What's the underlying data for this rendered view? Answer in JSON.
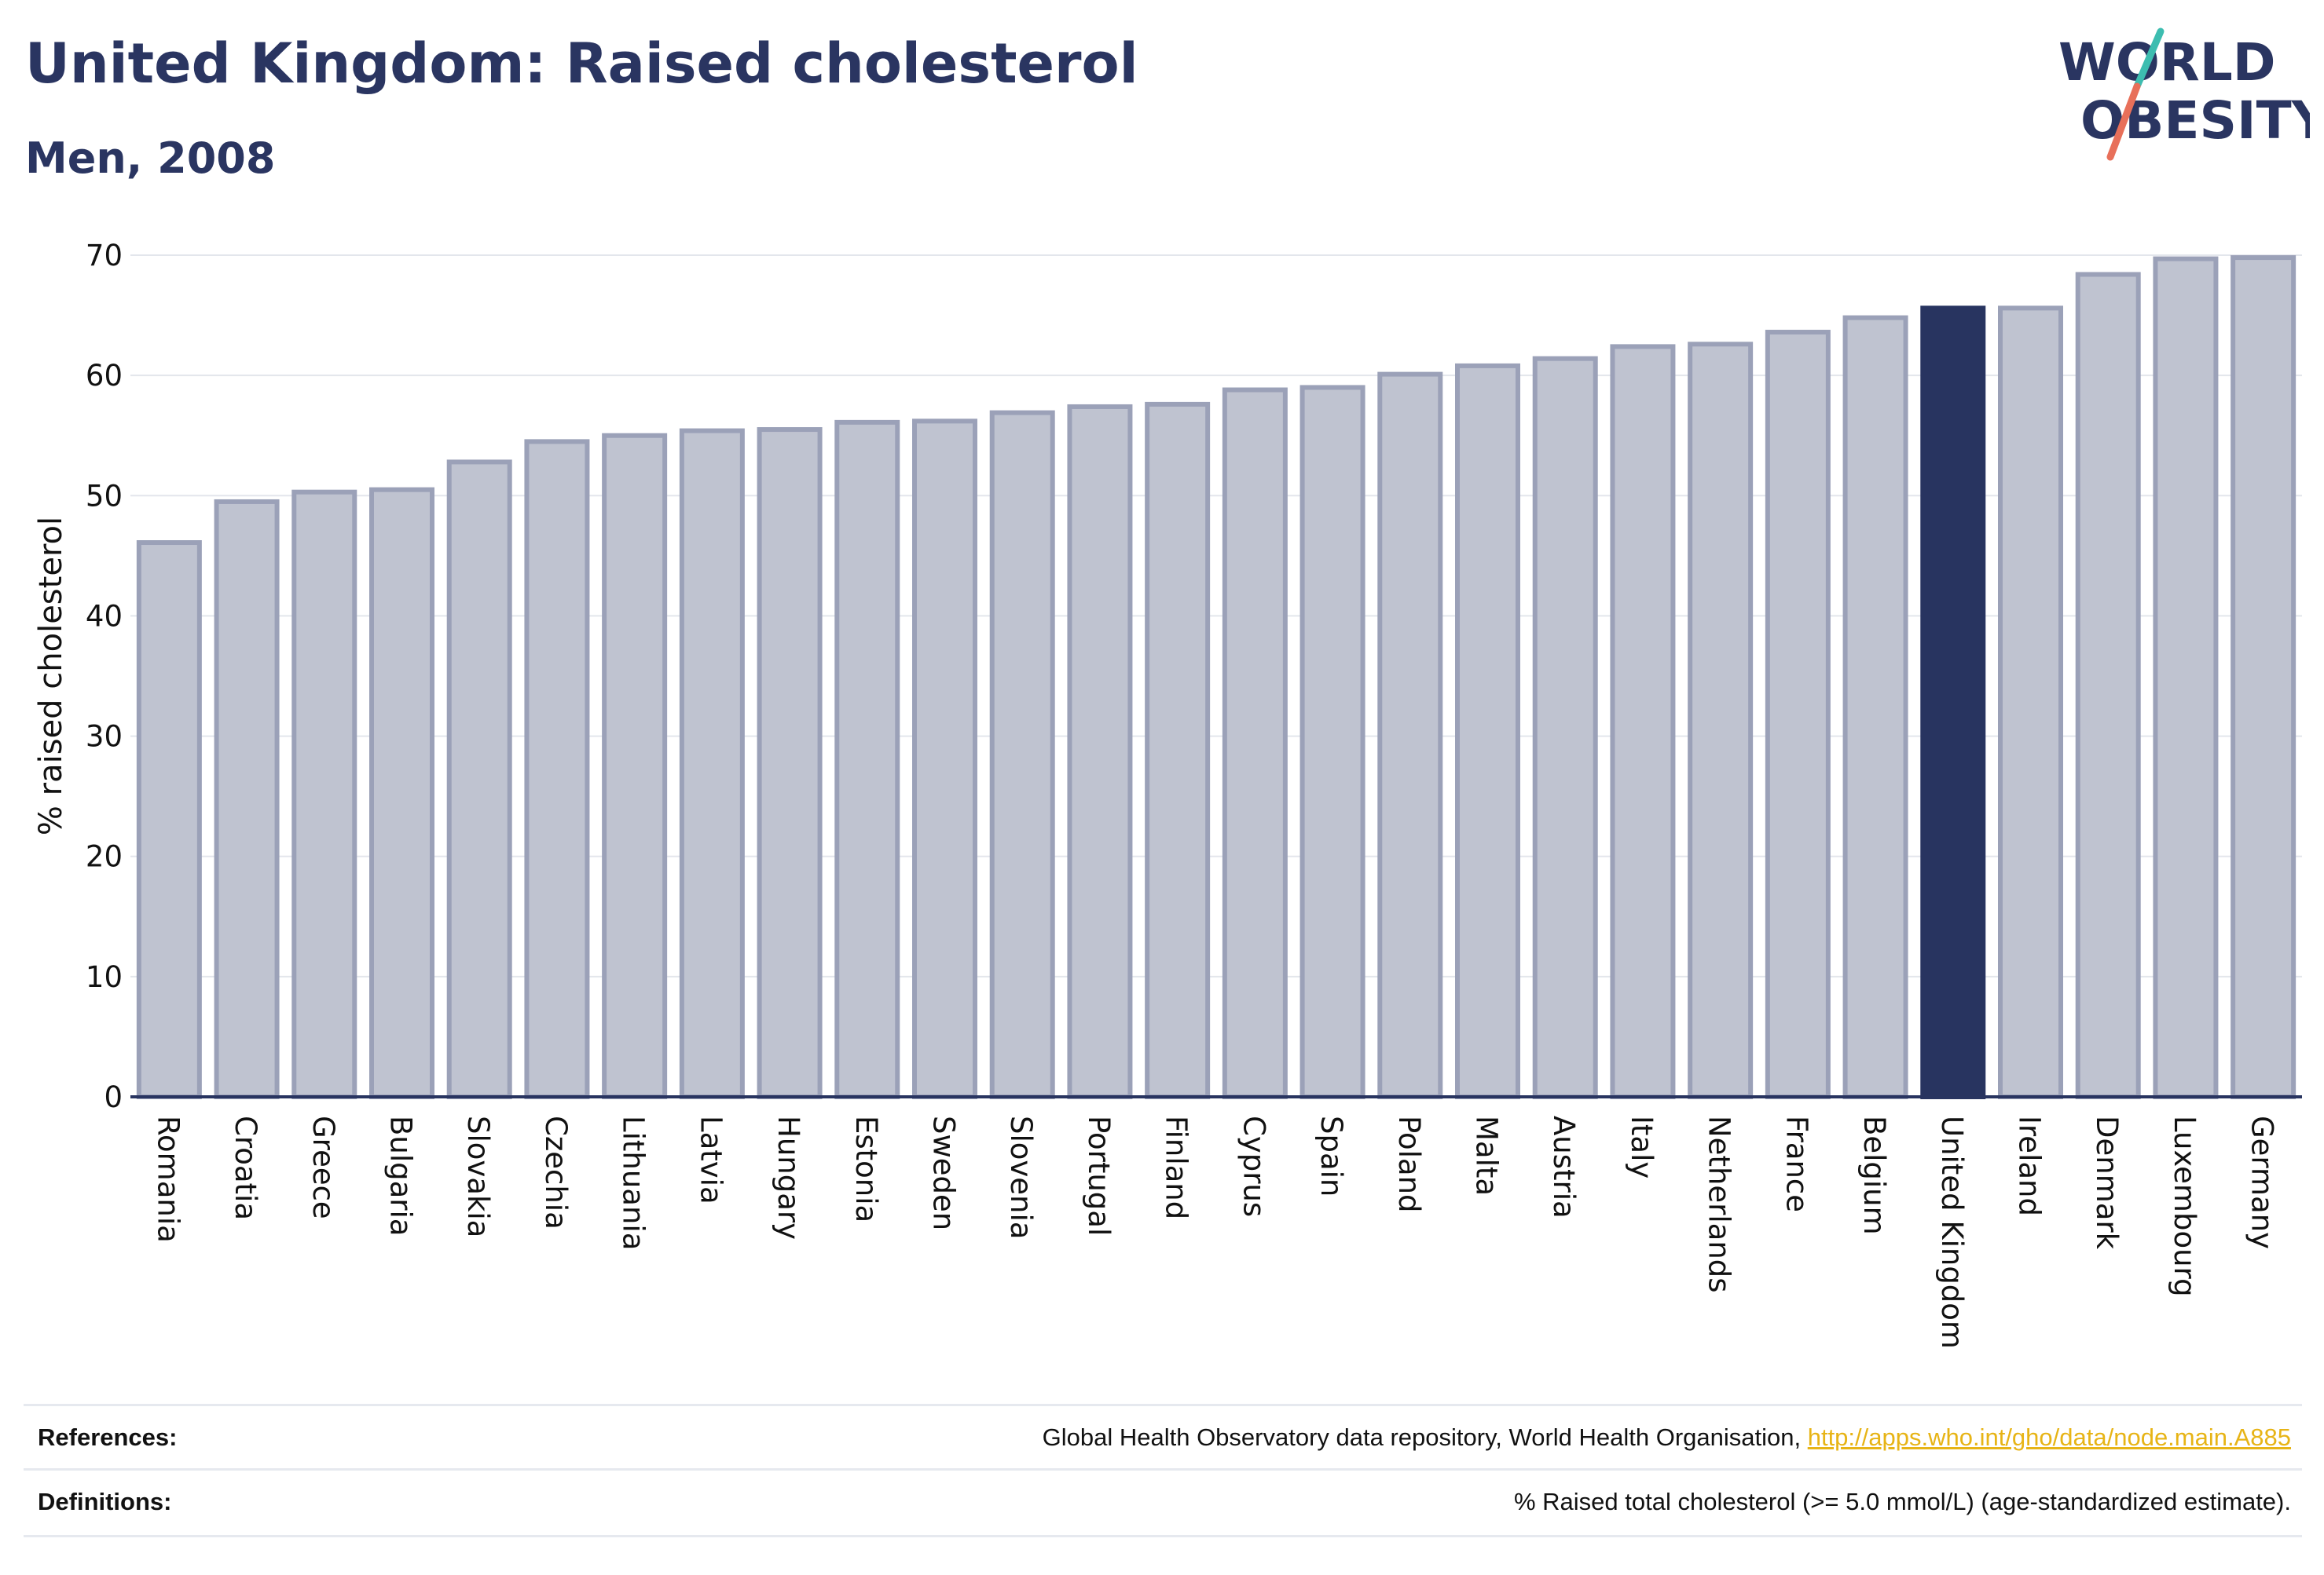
{
  "header": {
    "title": "United Kingdom: Raised cholesterol",
    "subtitle": "Men, 2008"
  },
  "logo": {
    "line1": "WORLD",
    "line2": "OBESITY",
    "colors": {
      "text": "#2a3561",
      "slash_top": "#3dbdb0",
      "slash_bottom": "#e8705a"
    }
  },
  "colors": {
    "bar_default": "#bfc3d0",
    "bar_default_stroke": "#9ba1b8",
    "bar_highlight": "#283460",
    "grid": "#e3e6ec",
    "axis": "#283460"
  },
  "chart_data": {
    "type": "bar",
    "title": "United Kingdom: Raised cholesterol",
    "subtitle": "Men, 2008",
    "xlabel": "",
    "ylabel": "% raised cholesterol",
    "ylim": [
      0,
      70
    ],
    "yticks": [
      0,
      10,
      20,
      30,
      40,
      50,
      60,
      70
    ],
    "grid": true,
    "highlight": "United Kingdom",
    "categories": [
      "Romania",
      "Croatia",
      "Greece",
      "Bulgaria",
      "Slovakia",
      "Czechia",
      "Lithuania",
      "Latvia",
      "Hungary",
      "Estonia",
      "Sweden",
      "Slovenia",
      "Portugal",
      "Finland",
      "Cyprus",
      "Spain",
      "Poland",
      "Malta",
      "Austria",
      "Italy",
      "Netherlands",
      "France",
      "Belgium",
      "United Kingdom",
      "Ireland",
      "Denmark",
      "Luxembourg",
      "Germany"
    ],
    "values": [
      46.1,
      49.5,
      50.3,
      50.5,
      52.8,
      54.5,
      55.0,
      55.4,
      55.5,
      56.1,
      56.2,
      56.9,
      57.4,
      57.6,
      58.8,
      59.0,
      60.1,
      60.8,
      61.4,
      62.4,
      62.6,
      63.6,
      64.8,
      65.6,
      65.6,
      68.4,
      69.7,
      69.8
    ]
  },
  "footer": {
    "references_label": "References:",
    "references_text": "Global Health Observatory data repository, World Health Organisation, ",
    "references_link": "http://apps.who.int/gho/data/node.main.A885",
    "definitions_label": "Definitions:",
    "definitions_text": "% Raised total cholesterol (>= 5.0 mmol/L) (age-standardized estimate)."
  }
}
